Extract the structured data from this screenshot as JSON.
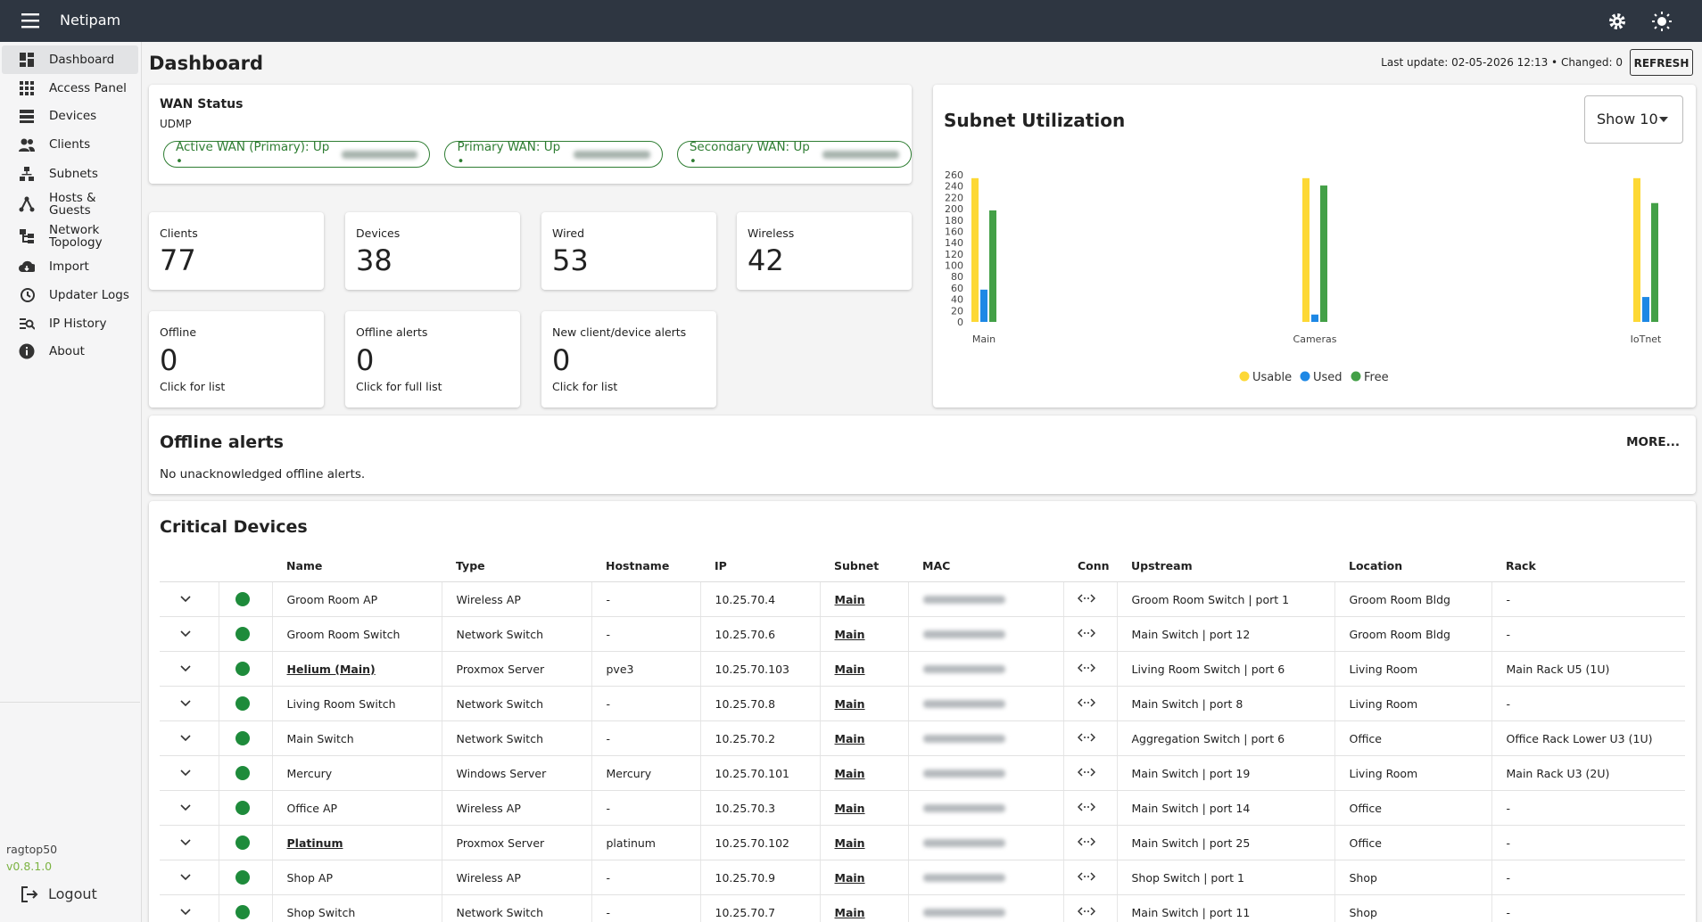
{
  "app": {
    "title": "Netipam"
  },
  "sidebar": {
    "items": [
      "Dashboard",
      "Access Panel",
      "Devices",
      "Clients",
      "Subnets",
      "Hosts & Guests",
      "Network Topology",
      "Import",
      "Updater Logs",
      "IP History",
      "About"
    ],
    "user": "ragtop50",
    "version": "v0.8.1.0",
    "logout": "Logout"
  },
  "header": {
    "title": "Dashboard",
    "status": "Last update: 02-05-2026 12:13 • Changed: 0",
    "refresh": "REFRESH"
  },
  "wan": {
    "title": "WAN Status",
    "subtitle": "UDMP",
    "chips": [
      "Active WAN (Primary): Up •",
      "Primary WAN: Up •",
      "Secondary WAN: Up •"
    ]
  },
  "stats": [
    {
      "label": "Clients",
      "value": 77
    },
    {
      "label": "Devices",
      "value": 38
    },
    {
      "label": "Wired",
      "value": 53
    },
    {
      "label": "Wireless",
      "value": 42
    }
  ],
  "alert_stats": [
    {
      "label": "Offline",
      "value": 0,
      "note": "Click for list"
    },
    {
      "label": "Offline alerts",
      "value": 0,
      "note": "Click for full list"
    },
    {
      "label": "New client/device alerts",
      "value": 0,
      "note": "Click for list"
    }
  ],
  "chart_data": {
    "type": "bar",
    "title": "Subnet Utilization",
    "control": "Show 10",
    "categories": [
      "Main",
      "Cameras",
      "IoTnet"
    ],
    "series": [
      {
        "name": "Usable",
        "color": "#fdd835",
        "values": [
          254,
          254,
          254
        ]
      },
      {
        "name": "Used",
        "color": "#1e88e5",
        "values": [
          57,
          13,
          44
        ]
      },
      {
        "name": "Free",
        "color": "#43a047",
        "values": [
          197,
          241,
          210
        ]
      }
    ],
    "ylim": [
      0,
      260
    ],
    "yticks": [
      0,
      20,
      40,
      60,
      80,
      100,
      120,
      140,
      160,
      180,
      200,
      220,
      240,
      260
    ],
    "grid": false
  },
  "offline_alerts": {
    "title": "Offline alerts",
    "more": "MORE...",
    "message": "No unacknowledged offline alerts."
  },
  "critical_devices": {
    "title": "Critical Devices",
    "columns": [
      "Name",
      "Type",
      "Hostname",
      "IP",
      "Subnet",
      "MAC",
      "Conn",
      "Upstream",
      "Location",
      "Rack"
    ],
    "rows": [
      {
        "name": "Groom Room AP",
        "type": "Wireless AP",
        "hostname": "-",
        "ip": "10.25.70.4",
        "subnet": "Main",
        "upstream": "Groom Room Switch | port 1",
        "location": "Groom Room Bldg",
        "rack": "-",
        "link": false
      },
      {
        "name": "Groom Room Switch",
        "type": "Network Switch",
        "hostname": "-",
        "ip": "10.25.70.6",
        "subnet": "Main",
        "upstream": "Main Switch | port 12",
        "location": "Groom Room Bldg",
        "rack": "-",
        "link": false
      },
      {
        "name": "Helium (Main)",
        "type": "Proxmox Server",
        "hostname": "pve3",
        "ip": "10.25.70.103",
        "subnet": "Main",
        "upstream": "Living Room Switch | port 6",
        "location": "Living Room",
        "rack": "Main Rack U5 (1U)",
        "link": true
      },
      {
        "name": "Living Room Switch",
        "type": "Network Switch",
        "hostname": "-",
        "ip": "10.25.70.8",
        "subnet": "Main",
        "upstream": "Main Switch | port 8",
        "location": "Living Room",
        "rack": "-",
        "link": false
      },
      {
        "name": "Main Switch",
        "type": "Network Switch",
        "hostname": "-",
        "ip": "10.25.70.2",
        "subnet": "Main",
        "upstream": "Aggregation Switch | port 6",
        "location": "Office",
        "rack": "Office Rack Lower U3 (1U)",
        "link": false
      },
      {
        "name": "Mercury",
        "type": "Windows Server",
        "hostname": "Mercury",
        "ip": "10.25.70.101",
        "subnet": "Main",
        "upstream": "Main Switch | port 19",
        "location": "Living Room",
        "rack": "Main Rack U3 (2U)",
        "link": false
      },
      {
        "name": "Office AP",
        "type": "Wireless AP",
        "hostname": "-",
        "ip": "10.25.70.3",
        "subnet": "Main",
        "upstream": "Main Switch | port 14",
        "location": "Office",
        "rack": "-",
        "link": false
      },
      {
        "name": "Platinum",
        "type": "Proxmox Server",
        "hostname": "platinum",
        "ip": "10.25.70.102",
        "subnet": "Main",
        "upstream": "Main Switch | port 25",
        "location": "Office",
        "rack": "-",
        "link": true
      },
      {
        "name": "Shop AP",
        "type": "Wireless AP",
        "hostname": "-",
        "ip": "10.25.70.9",
        "subnet": "Main",
        "upstream": "Shop Switch | port 1",
        "location": "Shop",
        "rack": "-",
        "link": false
      },
      {
        "name": "Shop Switch",
        "type": "Network Switch",
        "hostname": "-",
        "ip": "10.25.70.7",
        "subnet": "Main",
        "upstream": "Main Switch | port 11",
        "location": "Shop",
        "rack": "-",
        "link": false
      }
    ]
  }
}
